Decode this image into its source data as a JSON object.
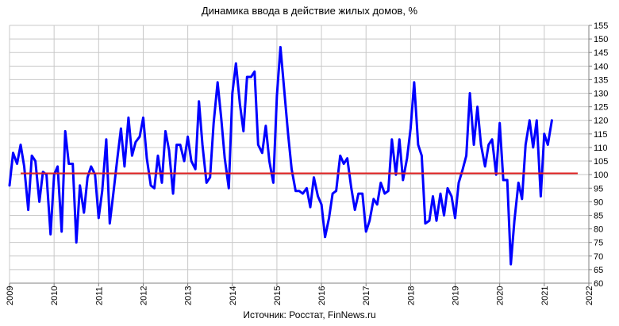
{
  "chart_data": {
    "type": "line",
    "title": "Динамика ввода в действие жилых домов, %",
    "source": "Источник: Росстат, FinNews.ru",
    "xlabel": "",
    "ylabel": "",
    "xlim": [
      2009,
      2022
    ],
    "ylim": [
      60,
      155
    ],
    "x_ticks": [
      "2009",
      "2010",
      "2011",
      "2012",
      "2013",
      "2014",
      "2015",
      "2016",
      "2017",
      "2018",
      "2019",
      "2020",
      "2021",
      "2022"
    ],
    "y_ticks": [
      "60",
      "65",
      "70",
      "75",
      "80",
      "85",
      "90",
      "95",
      "100",
      "105",
      "110",
      "115",
      "120",
      "125",
      "130",
      "135",
      "140",
      "145",
      "150",
      "155"
    ],
    "y_axis_position": "right",
    "grid": true,
    "reference_line": {
      "y": 100.5,
      "x_start": 2009.25,
      "x_end": 2021.75,
      "color": "#e02020"
    },
    "series": [
      {
        "color": "#0000ff",
        "points": [
          [
            2009.0,
            96
          ],
          [
            2009.08,
            108
          ],
          [
            2009.17,
            104
          ],
          [
            2009.25,
            111
          ],
          [
            2009.33,
            103
          ],
          [
            2009.42,
            87
          ],
          [
            2009.5,
            107
          ],
          [
            2009.58,
            105
          ],
          [
            2009.67,
            90
          ],
          [
            2009.75,
            101
          ],
          [
            2009.83,
            100
          ],
          [
            2009.92,
            78
          ],
          [
            2010.0,
            100
          ],
          [
            2010.08,
            103
          ],
          [
            2010.17,
            79
          ],
          [
            2010.25,
            116
          ],
          [
            2010.33,
            104
          ],
          [
            2010.42,
            104
          ],
          [
            2010.5,
            75
          ],
          [
            2010.58,
            96
          ],
          [
            2010.67,
            86
          ],
          [
            2010.75,
            99
          ],
          [
            2010.83,
            103
          ],
          [
            2010.92,
            100
          ],
          [
            2011.0,
            84
          ],
          [
            2011.08,
            94
          ],
          [
            2011.17,
            113
          ],
          [
            2011.25,
            82
          ],
          [
            2011.33,
            93
          ],
          [
            2011.42,
            106
          ],
          [
            2011.5,
            117
          ],
          [
            2011.58,
            103
          ],
          [
            2011.67,
            121
          ],
          [
            2011.75,
            107
          ],
          [
            2011.83,
            112
          ],
          [
            2011.92,
            114
          ],
          [
            2012.0,
            121
          ],
          [
            2012.08,
            106
          ],
          [
            2012.17,
            96
          ],
          [
            2012.25,
            95
          ],
          [
            2012.33,
            107
          ],
          [
            2012.42,
            97
          ],
          [
            2012.5,
            116
          ],
          [
            2012.58,
            109
          ],
          [
            2012.67,
            93
          ],
          [
            2012.75,
            111
          ],
          [
            2012.83,
            111
          ],
          [
            2012.92,
            105
          ],
          [
            2013.0,
            114
          ],
          [
            2013.08,
            105
          ],
          [
            2013.17,
            102
          ],
          [
            2013.25,
            127
          ],
          [
            2013.33,
            111
          ],
          [
            2013.42,
            97
          ],
          [
            2013.5,
            99
          ],
          [
            2013.58,
            119
          ],
          [
            2013.67,
            134
          ],
          [
            2013.75,
            121
          ],
          [
            2013.83,
            106
          ],
          [
            2013.92,
            95
          ],
          [
            2014.0,
            130
          ],
          [
            2014.08,
            141
          ],
          [
            2014.17,
            126
          ],
          [
            2014.25,
            116
          ],
          [
            2014.33,
            136
          ],
          [
            2014.42,
            136
          ],
          [
            2014.5,
            138
          ],
          [
            2014.58,
            111
          ],
          [
            2014.67,
            108
          ],
          [
            2014.75,
            118
          ],
          [
            2014.83,
            105
          ],
          [
            2014.92,
            97
          ],
          [
            2015.0,
            129
          ],
          [
            2015.08,
            147
          ],
          [
            2015.17,
            130
          ],
          [
            2015.25,
            115
          ],
          [
            2015.33,
            102
          ],
          [
            2015.42,
            94
          ],
          [
            2015.5,
            94
          ],
          [
            2015.58,
            93
          ],
          [
            2015.67,
            95
          ],
          [
            2015.75,
            88
          ],
          [
            2015.83,
            99
          ],
          [
            2015.92,
            92
          ],
          [
            2016.0,
            89
          ],
          [
            2016.08,
            77
          ],
          [
            2016.17,
            84
          ],
          [
            2016.25,
            93
          ],
          [
            2016.33,
            94
          ],
          [
            2016.42,
            107
          ],
          [
            2016.5,
            104
          ],
          [
            2016.58,
            106
          ],
          [
            2016.67,
            95
          ],
          [
            2016.75,
            87
          ],
          [
            2016.83,
            93
          ],
          [
            2016.92,
            93
          ],
          [
            2017.0,
            79
          ],
          [
            2017.08,
            83
          ],
          [
            2017.17,
            91
          ],
          [
            2017.25,
            89
          ],
          [
            2017.33,
            97
          ],
          [
            2017.42,
            93
          ],
          [
            2017.5,
            94
          ],
          [
            2017.58,
            113
          ],
          [
            2017.67,
            100
          ],
          [
            2017.75,
            113
          ],
          [
            2017.83,
            98
          ],
          [
            2017.92,
            106
          ],
          [
            2018.0,
            117
          ],
          [
            2018.08,
            134
          ],
          [
            2018.17,
            111
          ],
          [
            2018.25,
            107
          ],
          [
            2018.33,
            82
          ],
          [
            2018.42,
            83
          ],
          [
            2018.5,
            92
          ],
          [
            2018.58,
            83
          ],
          [
            2018.67,
            93
          ],
          [
            2018.75,
            85
          ],
          [
            2018.83,
            95
          ],
          [
            2018.92,
            92
          ],
          [
            2019.0,
            84
          ],
          [
            2019.08,
            97
          ],
          [
            2019.17,
            102
          ],
          [
            2019.25,
            107
          ],
          [
            2019.33,
            130
          ],
          [
            2019.42,
            111
          ],
          [
            2019.5,
            125
          ],
          [
            2019.58,
            111
          ],
          [
            2019.67,
            103
          ],
          [
            2019.75,
            111
          ],
          [
            2019.83,
            113
          ],
          [
            2019.92,
            100
          ],
          [
            2020.0,
            119
          ],
          [
            2020.08,
            98
          ],
          [
            2020.17,
            98
          ],
          [
            2020.25,
            67
          ],
          [
            2020.33,
            83
          ],
          [
            2020.42,
            97
          ],
          [
            2020.5,
            91
          ],
          [
            2020.58,
            111
          ],
          [
            2020.67,
            120
          ],
          [
            2020.75,
            110
          ],
          [
            2020.83,
            120
          ],
          [
            2020.92,
            92
          ],
          [
            2021.0,
            115
          ],
          [
            2021.08,
            111
          ],
          [
            2021.17,
            120
          ]
        ]
      }
    ]
  }
}
